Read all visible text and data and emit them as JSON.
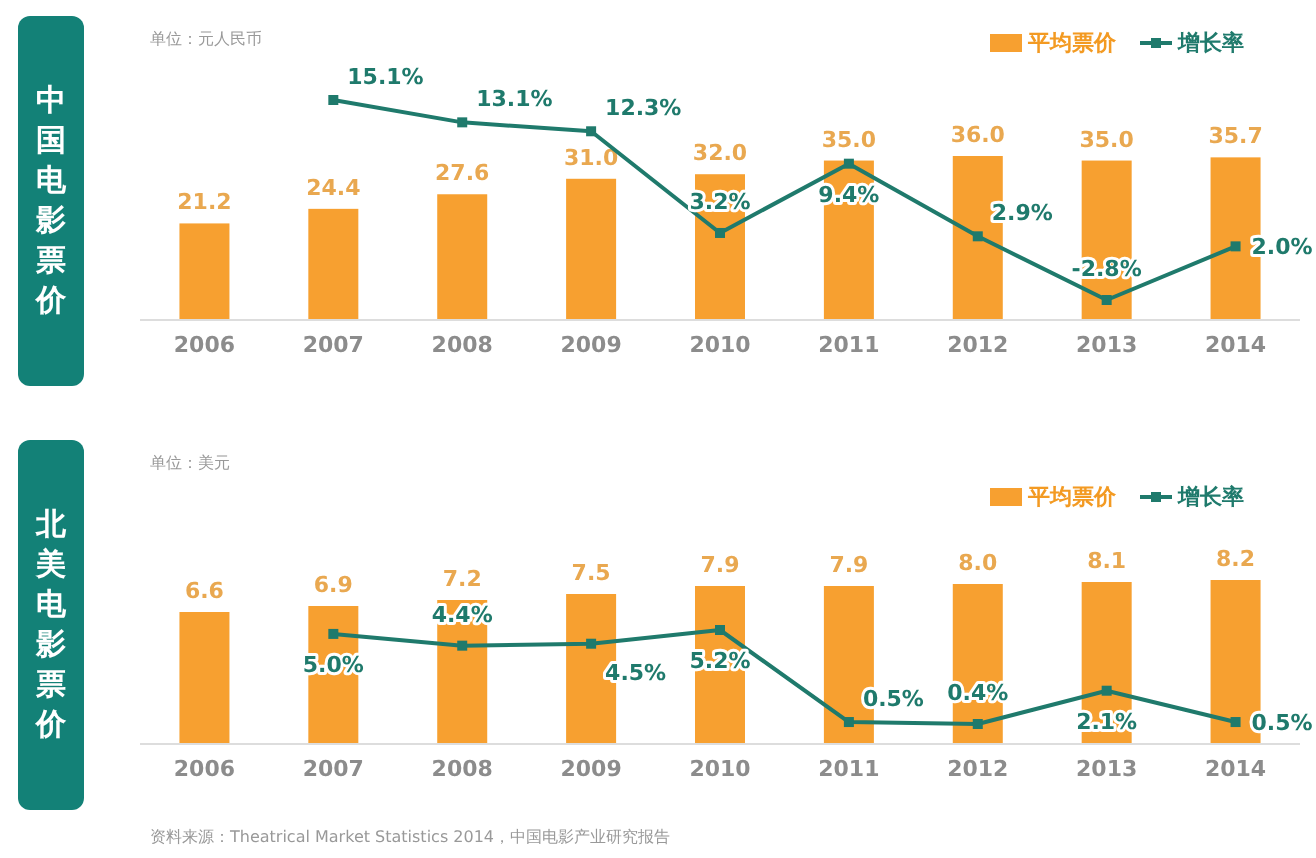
{
  "chart_data": [
    {
      "type": "bar",
      "title": "中国电影票价",
      "subtitle": "单位：元人民币",
      "legend": "top right",
      "categories": [
        "2006",
        "2007",
        "2008",
        "2009",
        "2010",
        "2011",
        "2012",
        "2013",
        "2014"
      ],
      "series": [
        {
          "name": "平均票价",
          "type": "bar",
          "color": "#f7a030",
          "values": [
            21.2,
            24.4,
            27.6,
            31.0,
            32.0,
            35.0,
            36.0,
            35.0,
            35.7
          ],
          "value_labels": [
            "21.2",
            "24.4",
            "27.6",
            "31.0",
            "32.0",
            "35.0",
            "36.0",
            "35.0",
            "35.7"
          ]
        },
        {
          "name": "增长率",
          "type": "line",
          "axis": "y2",
          "color": "#1f7a6c",
          "marker": "square",
          "values": [
            null,
            15.1,
            13.1,
            12.3,
            3.2,
            9.4,
            2.9,
            -2.8,
            2.0
          ],
          "value_labels": [
            null,
            "15.1%",
            "13.1%",
            "12.3%",
            "3.2%",
            "9.4%",
            "2.9%",
            "-2.8%",
            "2.0%"
          ]
        }
      ]
    },
    {
      "type": "bar",
      "title": "北美电影票价",
      "subtitle": "单位：美元",
      "legend": "top right",
      "categories": [
        "2006",
        "2007",
        "2008",
        "2009",
        "2010",
        "2011",
        "2012",
        "2013",
        "2014"
      ],
      "series": [
        {
          "name": "平均票价",
          "type": "bar",
          "color": "#f7a030",
          "values": [
            6.6,
            6.9,
            7.2,
            7.5,
            7.9,
            7.9,
            8.0,
            8.1,
            8.2
          ],
          "value_labels": [
            "6.6",
            "6.9",
            "7.2",
            "7.5",
            "7.9",
            "7.9",
            "8.0",
            "8.1",
            "8.2"
          ]
        },
        {
          "name": "增长率",
          "type": "line",
          "axis": "y2",
          "color": "#1f7a6c",
          "marker": "square",
          "values": [
            null,
            5.0,
            4.4,
            4.5,
            5.2,
            0.5,
            0.4,
            2.1,
            0.5
          ],
          "value_labels": [
            null,
            "5.0%",
            "4.4%",
            "4.5%",
            "5.2%",
            "0.5%",
            "0.4%",
            "2.1%",
            "0.5%"
          ]
        }
      ],
      "annotations": [
        "资料来源：Theatrical Market Statistics 2014，中国电影产业研究报告"
      ]
    }
  ]
}
